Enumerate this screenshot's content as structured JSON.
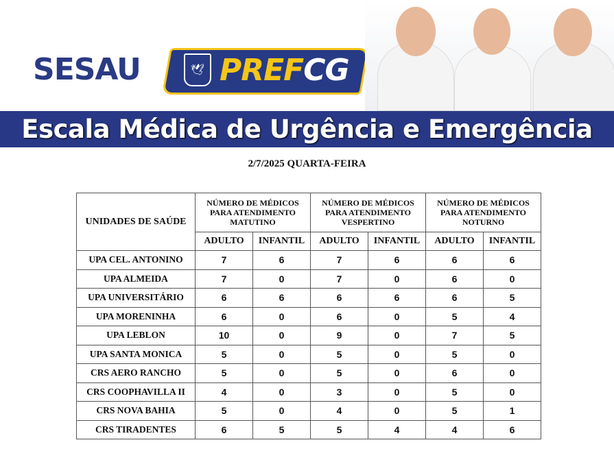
{
  "header": {
    "org": "SESAU",
    "logo_pref": "PREF",
    "logo_cg": "CG",
    "title": "Escala Médica de Urgência e Emergência",
    "brand_color": "#293886",
    "accent_color": "#f5c518"
  },
  "date": "2/7/2025 QUARTA-FEIRA",
  "table": {
    "unit_header": "UNIDADES DE SAÚDE",
    "shift_headers": [
      "NÚMERO DE MÉDICOS PARA ATENDIMENTO MATUTINO",
      "NÚMERO DE MÉDICOS PARA ATENDIMENTO VESPERTINO",
      "NÚMERO DE MÉDICOS PARA ATENDIMENTO NOTURNO"
    ],
    "sub_headers": [
      "ADULTO",
      "INFANTIL",
      "ADULTO",
      "INFANTIL",
      "ADULTO",
      "INFANTIL"
    ],
    "rows": [
      {
        "unit": "UPA CEL. ANTONINO",
        "values": [
          "7",
          "6",
          "7",
          "6",
          "6",
          "6"
        ]
      },
      {
        "unit": "UPA ALMEIDA",
        "values": [
          "7",
          "0",
          "7",
          "0",
          "6",
          "0"
        ]
      },
      {
        "unit": "UPA UNIVERSITÁRIO",
        "values": [
          "6",
          "6",
          "6",
          "6",
          "6",
          "5"
        ]
      },
      {
        "unit": "UPA MORENINHA",
        "values": [
          "6",
          "0",
          "6",
          "0",
          "5",
          "4"
        ]
      },
      {
        "unit": "UPA LEBLON",
        "values": [
          "10",
          "0",
          "9",
          "0",
          "7",
          "5"
        ]
      },
      {
        "unit": "UPA SANTA MONICA",
        "values": [
          "5",
          "0",
          "5",
          "0",
          "5",
          "0"
        ]
      },
      {
        "unit": "CRS AERO RANCHO",
        "values": [
          "5",
          "0",
          "5",
          "0",
          "6",
          "0"
        ]
      },
      {
        "unit": "CRS COOPHAVILLA II",
        "values": [
          "4",
          "0",
          "3",
          "0",
          "5",
          "0"
        ]
      },
      {
        "unit": "CRS NOVA BAHIA",
        "values": [
          "5",
          "0",
          "4",
          "0",
          "5",
          "1"
        ]
      },
      {
        "unit": "CRS TIRADENTES",
        "values": [
          "6",
          "5",
          "5",
          "4",
          "4",
          "6"
        ]
      }
    ]
  }
}
